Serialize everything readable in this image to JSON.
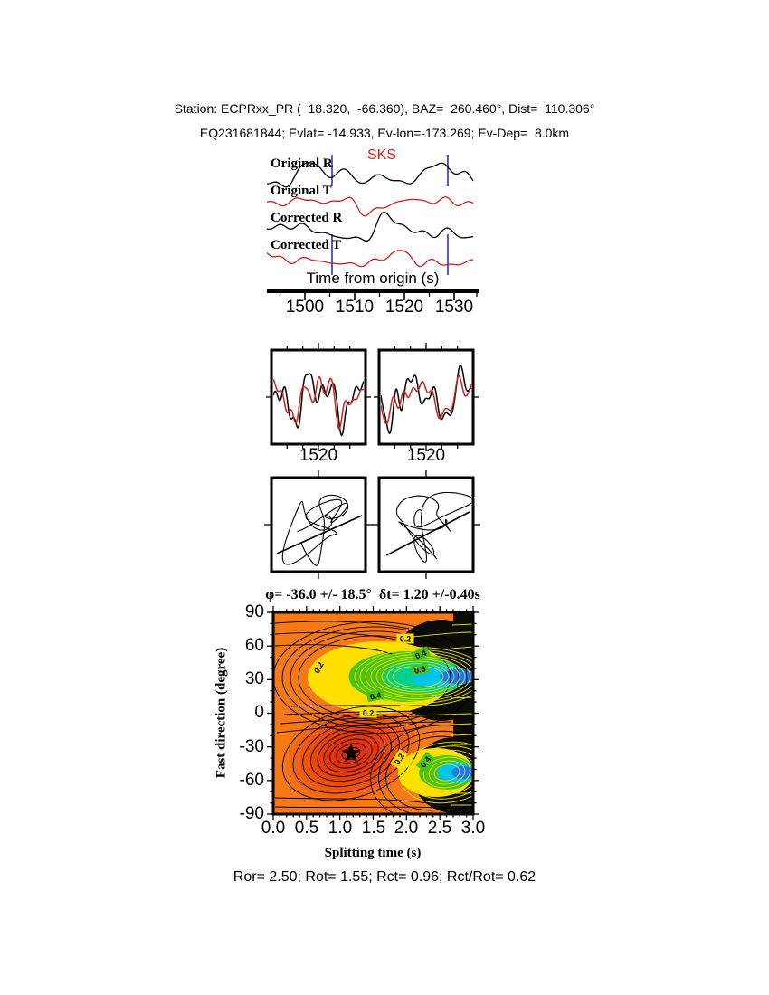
{
  "header": {
    "line1": "Station: ECPRxx_PR (  18.320,  -66.360), BAZ=  260.460°, Dist=  110.306°",
    "line2": "EQ231681844; Evlat= -14.933, Ev-lon=-173.269; Ev-Dep=  8.0km"
  },
  "seismograms": {
    "phase_label": "SKS",
    "phase_label_color": "#dd1c1c",
    "window_marker_color": "#2a35c0",
    "trace_labels": [
      "Original R",
      "Original T",
      "Corrected R",
      "Corrected T"
    ],
    "trace_colors": [
      "#000000",
      "#cf1f1a",
      "#000000",
      "#cf1f1a"
    ],
    "axis_label": "Time from origin (s)",
    "tick_labels": [
      "1500",
      "1510",
      "1520",
      "1530"
    ]
  },
  "wave_windows": {
    "left_tick": "1520",
    "right_tick": "1520"
  },
  "error_surface": {
    "title": "φ= -36.0 +/- 18.5°  δt= 1.20 +/-0.40s",
    "ylabel": "Fast direction (degree)",
    "xlabel": "Splitting time (s)",
    "ytick_labels": [
      "90",
      "60",
      "30",
      "0",
      "-30",
      "-60",
      "-90"
    ],
    "xtick_labels": [
      "0.0",
      "0.5",
      "1.0",
      "1.5",
      "2.0",
      "2.5",
      "3.0"
    ],
    "contour_labels": {
      "l02": "0.2",
      "l04": "0.4",
      "l06": "0.6"
    },
    "colors": {
      "base_orange": "#f87a16",
      "minimum_red": "#e32607",
      "yellow": "#ffdf00",
      "green": "#49c414",
      "cyan": "#00c4ea",
      "blue": "#1d74f2",
      "black_region": "#0c0c04"
    }
  },
  "footer": "Ror= 2.50; Rot= 1.55; Rct= 0.96; Rct/Rot= 0.62",
  "metrics": {
    "Ror": 2.5,
    "Rot": 1.55,
    "Rct": 0.96,
    "Rct_over_Rot": 0.62
  },
  "chart_data": [
    {
      "type": "line",
      "title": "SKS splitting seismogram traces",
      "xlabel": "Time from origin (s)",
      "xlim": [
        1494,
        1536
      ],
      "xticks": [
        1500,
        1510,
        1520,
        1530
      ],
      "series": [
        {
          "name": "Original R",
          "color": "black"
        },
        {
          "name": "Original T",
          "color": "red"
        },
        {
          "name": "Corrected R",
          "color": "black"
        },
        {
          "name": "Corrected T",
          "color": "red"
        }
      ],
      "phase_marker": {
        "label": "SKS",
        "approx_time_s": 1516
      },
      "analysis_window_s": [
        1506.5,
        1530
      ],
      "window_marker_style": "vertical blue lines"
    },
    {
      "type": "line",
      "title": "Windowed waveform overlays (two panels, black vs red component)",
      "panels": 2,
      "xticks": [
        1520
      ]
    },
    {
      "type": "scatter",
      "title": "Particle motion hodograms (original and corrected)",
      "panels": 2
    },
    {
      "type": "heatmap",
      "title": "Splitting parameter error surface",
      "xlabel": "Splitting time (s)",
      "ylabel": "Fast direction (degree)",
      "xlim": [
        0.0,
        3.0
      ],
      "ylim": [
        -90,
        90
      ],
      "xticks": [
        0.0,
        0.5,
        1.0,
        1.5,
        2.0,
        2.5,
        3.0
      ],
      "yticks": [
        -90,
        -60,
        -30,
        0,
        30,
        60,
        90
      ],
      "grid": false,
      "labeled_contour_levels": [
        0.2,
        0.4,
        0.6
      ],
      "best_solution": {
        "fast_direction_deg": -36.0,
        "fast_direction_err_deg": 18.5,
        "splitting_time_s": 1.2,
        "splitting_time_err_s": 0.4,
        "marker": "black star"
      },
      "secondary_minima": [
        {
          "splitting_time_s": 3.0,
          "fast_direction_deg": 32
        },
        {
          "splitting_time_s": 2.9,
          "fast_direction_deg": -55
        }
      ],
      "quality_metrics": {
        "Ror": 2.5,
        "Rot": 1.55,
        "Rct": 0.96,
        "Rct_over_Rot": 0.62
      }
    }
  ]
}
